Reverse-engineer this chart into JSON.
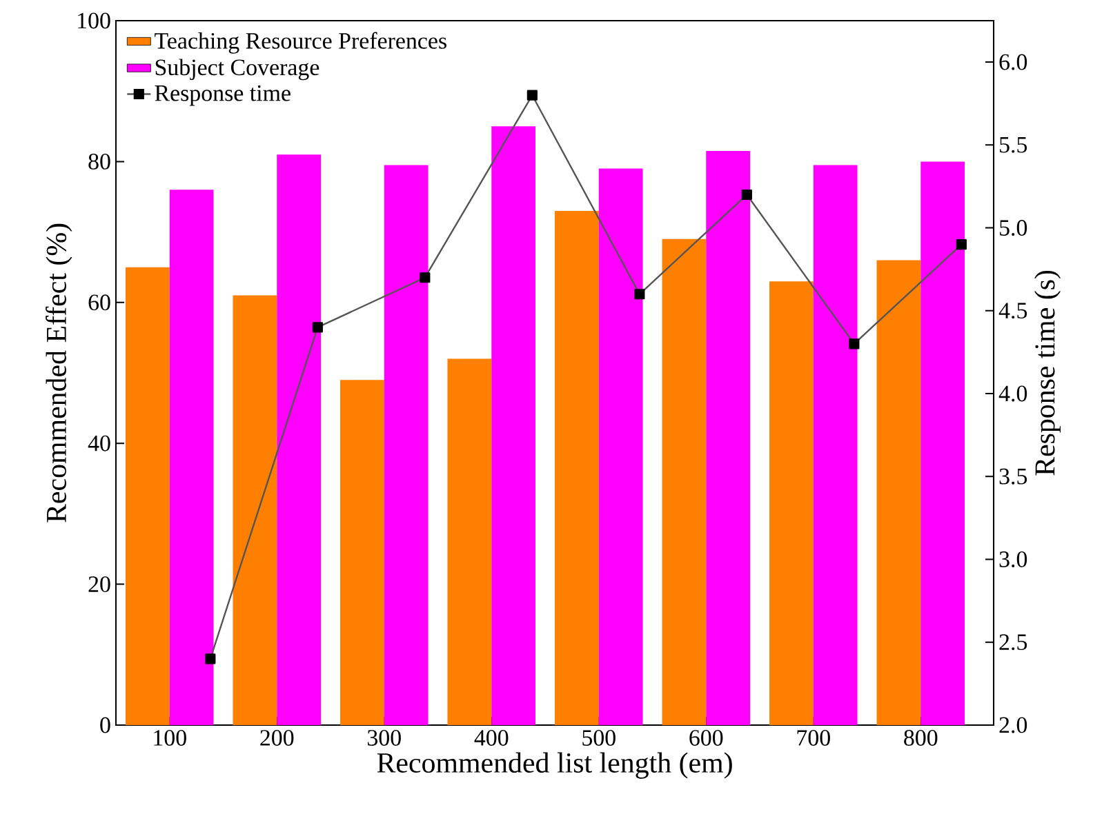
{
  "chart_data": {
    "type": "bar",
    "xlabel": "Recommended list length (em)",
    "ylabel": "Recommended Effect (%)",
    "y2label": "Response time (s)",
    "categories": [
      "100",
      "200",
      "300",
      "400",
      "500",
      "600",
      "700",
      "800"
    ],
    "series": [
      {
        "name": "Teaching Resource Preferences",
        "color": "#ff7f00",
        "values": [
          65,
          61,
          49,
          52,
          73,
          69,
          63,
          66
        ]
      },
      {
        "name": "Subject Coverage",
        "color": "#ff00ff",
        "values": [
          76,
          81,
          79.5,
          85,
          79,
          81.5,
          79.5,
          80
        ]
      },
      {
        "name": "Response time",
        "type": "line",
        "axis": "y2",
        "color": "#555555",
        "marker": "square",
        "line_style": "solid",
        "values": [
          2.4,
          4.4,
          4.7,
          5.8,
          4.6,
          5.2,
          4.3,
          4.9
        ]
      }
    ],
    "ylim": [
      0,
      100
    ],
    "yticks": [
      0,
      20,
      40,
      60,
      80,
      100
    ],
    "y2lim": [
      2,
      6.25
    ],
    "y2ticks": [
      {
        "value": 2,
        "label": "2.0"
      },
      {
        "value": 2.5,
        "label": "2.5"
      },
      {
        "value": 3,
        "label": "3.0"
      },
      {
        "value": 3.5,
        "label": "3.5"
      },
      {
        "value": 4,
        "label": "4.0"
      },
      {
        "value": 4.5,
        "label": "4.5"
      },
      {
        "value": 5,
        "label": "5.0"
      },
      {
        "value": 5.5,
        "label": "5.5"
      },
      {
        "value": 6,
        "label": "6.0"
      }
    ],
    "grid": false,
    "legend": "top left"
  }
}
